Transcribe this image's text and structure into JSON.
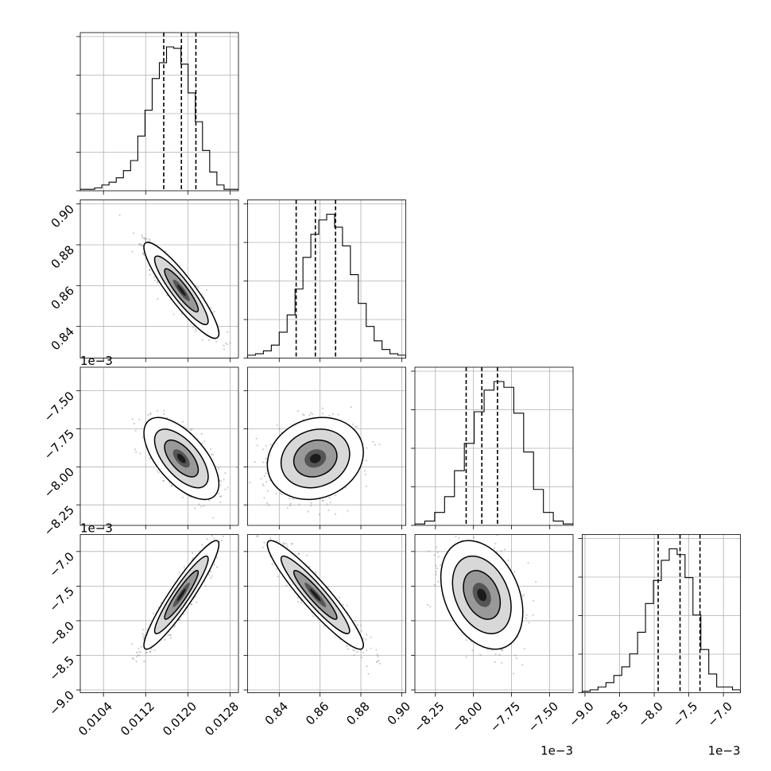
{
  "chart_data": {
    "type": "corner",
    "params": [
      "p0",
      "p1",
      "p2",
      "p3"
    ],
    "param_labels": [
      "",
      "",
      "",
      ""
    ],
    "ranges": [
      [
        0.00996,
        0.01296
      ],
      [
        0.8245,
        0.902
      ],
      [
        -0.008385,
        -0.007345
      ],
      [
        -0.00904,
        -0.006755
      ]
    ],
    "quantiles": [
      [
        0.011543,
        0.011878,
        0.012153
      ],
      [
        0.8483,
        0.8577,
        0.8676
      ],
      [
        -0.008048,
        -0.007945,
        -0.007842
      ],
      [
        -0.007943,
        -0.007627,
        -0.007339
      ]
    ],
    "axis_ticks": [
      {
        "values": [
          0.0104,
          0.0112,
          0.012,
          0.0128
        ],
        "labels": [
          "0.0104",
          "0.0112",
          "0.0120",
          "0.0128"
        ],
        "offset": ""
      },
      {
        "values": [
          0.84,
          0.86,
          0.88,
          0.9
        ],
        "labels": [
          "0.84",
          "0.86",
          "0.88",
          "0.90"
        ],
        "offset": ""
      },
      {
        "values": [
          -0.00825,
          -0.008,
          -0.00775,
          -0.0075
        ],
        "labels": [
          "−8.25",
          "−8.00",
          "−7.75",
          "−7.50"
        ],
        "offset": "1e−3"
      },
      {
        "values": [
          -0.009,
          -0.0085,
          -0.008,
          -0.0075,
          -0.007
        ],
        "labels": [
          "−9.0",
          "−8.5",
          "−8.0",
          "−7.5",
          "−7.0"
        ],
        "offset": "1e−3"
      }
    ],
    "hist_counts": [
      [
        1,
        1,
        2,
        4,
        6,
        9,
        14,
        21,
        38,
        56,
        78,
        89,
        100,
        99,
        88,
        68,
        48,
        28,
        13,
        4,
        1,
        1
      ],
      [
        2,
        3,
        5,
        9,
        18,
        30,
        48,
        70,
        86,
        96,
        100,
        91,
        78,
        58,
        38,
        22,
        12,
        6,
        3,
        2
      ],
      [
        1,
        3,
        9,
        20,
        38,
        57,
        79,
        94,
        100,
        96,
        78,
        51,
        25,
        9,
        3,
        1
      ],
      [
        1,
        2,
        4,
        7,
        12,
        18,
        27,
        42,
        62,
        78,
        92,
        100,
        96,
        80,
        54,
        30,
        13,
        4,
        4,
        2
      ]
    ],
    "pairs": [
      {
        "row": 1,
        "col": 0,
        "mean": [
          0.011878,
          0.8577
        ],
        "sd": [
          0.00029,
          0.0096
        ],
        "corr": -0.9
      },
      {
        "row": 2,
        "col": 0,
        "mean": [
          0.011878,
          -0.007945
        ],
        "sd": [
          0.00029,
          0.00011
        ],
        "corr": -0.62
      },
      {
        "row": 2,
        "col": 1,
        "mean": [
          0.8577,
          -0.007945
        ],
        "sd": [
          0.0096,
          0.00011
        ],
        "corr": 0.15
      },
      {
        "row": 3,
        "col": 0,
        "mean": [
          0.011878,
          -0.007627
        ],
        "sd": [
          0.00029,
          0.00032
        ],
        "corr": 0.93
      },
      {
        "row": 3,
        "col": 1,
        "mean": [
          0.8577,
          -0.007627
        ],
        "sd": [
          0.0096,
          0.00032
        ],
        "corr": -0.93
      },
      {
        "row": 3,
        "col": 2,
        "mean": [
          -0.007945,
          -0.007627
        ],
        "sd": [
          0.00011,
          0.00032
        ],
        "corr": -0.32
      }
    ],
    "grid": true,
    "legend": "none"
  }
}
